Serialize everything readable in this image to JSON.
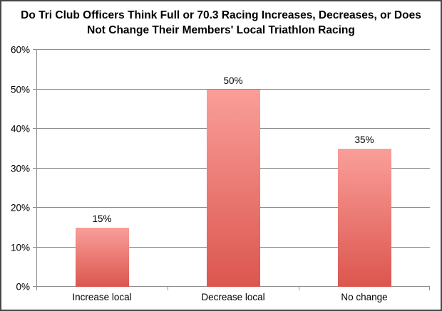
{
  "chart_data": {
    "type": "bar",
    "title": "Do Tri Club Officers Think Full or 70.3 Racing Increases, Decreases, or Does Not Change Their Members' Local Triathlon Racing",
    "title_lines": [
      "Do Tri Club Officers Think Full or 70.3 Racing Increases, Decreases, or Does",
      "Not Change Their Members' Local Triathlon Racing"
    ],
    "categories": [
      "Increase local",
      "Decrease local",
      "No change"
    ],
    "values": [
      15,
      50,
      35
    ],
    "value_labels": [
      "15%",
      "50%",
      "35%"
    ],
    "xlabel": "",
    "ylabel": "",
    "ylim": [
      0,
      60
    ],
    "ytick_step": 10,
    "ytick_labels": [
      "0%",
      "10%",
      "20%",
      "30%",
      "40%",
      "50%",
      "60%"
    ],
    "grid": true,
    "legend_position": "none",
    "colors": {
      "bar_gradient_top": "#fa9e99",
      "bar_gradient_bottom": "#db564e",
      "gridline": "#8e8e8e",
      "axis": "#8e8e8e",
      "text": "#000000",
      "frame_border": "#474747",
      "background": "#ffffff"
    }
  }
}
